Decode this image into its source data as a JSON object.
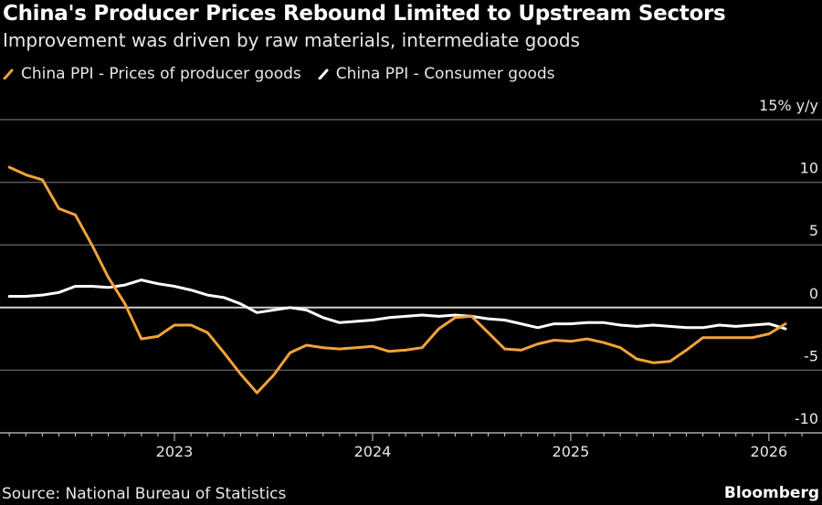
{
  "chart_data": {
    "type": "line",
    "title": "China's Producer Prices Rebound Limited to Upstream Sectors",
    "subtitle": "Improvement was driven by raw materials, intermediate goods",
    "xlabel": "",
    "ylabel": "% y/y",
    "y_unit_label": "15% y/y",
    "ylim": [
      -10,
      15
    ],
    "yticks": [
      15,
      10,
      5,
      0,
      -5,
      -10
    ],
    "ytick_labels": [
      "15% y/y",
      "10",
      "5",
      "0",
      "-5",
      "-10"
    ],
    "xticks": [
      "2023",
      "2024",
      "2025",
      "2026"
    ],
    "x_start": "2022-03",
    "x_end": "2026-02",
    "grid": true,
    "legend_position": "top-left",
    "x": [
      "2022-03",
      "2022-04",
      "2022-05",
      "2022-06",
      "2022-07",
      "2022-08",
      "2022-09",
      "2022-10",
      "2022-11",
      "2022-12",
      "2023-01",
      "2023-02",
      "2023-03",
      "2023-04",
      "2023-05",
      "2023-06",
      "2023-07",
      "2023-08",
      "2023-09",
      "2023-10",
      "2023-11",
      "2023-12",
      "2024-01",
      "2024-02",
      "2024-03",
      "2024-04",
      "2024-05",
      "2024-06",
      "2024-07",
      "2024-08",
      "2024-09",
      "2024-10",
      "2024-11",
      "2024-12",
      "2025-01",
      "2025-02",
      "2025-03",
      "2025-04",
      "2025-05",
      "2025-06",
      "2025-07",
      "2025-08",
      "2025-09",
      "2025-10",
      "2025-11",
      "2025-12",
      "2026-01",
      "2026-02"
    ],
    "series": [
      {
        "name": "China PPI - Prices of producer goods",
        "color": "#f2a33a",
        "values": [
          11.2,
          10.6,
          10.2,
          7.9,
          7.4,
          5.0,
          2.4,
          0.3,
          -2.5,
          -2.3,
          -1.4,
          -1.4,
          -2.0,
          -3.6,
          -5.3,
          -6.8,
          -5.4,
          -3.6,
          -3.0,
          -3.2,
          -3.3,
          -3.2,
          -3.1,
          -3.5,
          -3.4,
          -3.2,
          -1.7,
          -0.8,
          -0.7,
          -2.0,
          -3.3,
          -3.4,
          -2.9,
          -2.6,
          -2.7,
          -2.5,
          -2.8,
          -3.2,
          -4.1,
          -4.4,
          -4.3,
          -3.4,
          -2.4,
          -2.4,
          -2.4,
          -2.4,
          -2.1,
          -1.3
        ]
      },
      {
        "name": "China PPI - Consumer goods",
        "color": "#ffffff",
        "values": [
          0.9,
          0.9,
          1.0,
          1.2,
          1.7,
          1.7,
          1.6,
          1.8,
          2.2,
          1.9,
          1.7,
          1.4,
          1.0,
          0.8,
          0.3,
          -0.4,
          -0.2,
          0.0,
          -0.2,
          -0.8,
          -1.2,
          -1.1,
          -1.0,
          -0.8,
          -0.7,
          -0.6,
          -0.7,
          -0.6,
          -0.7,
          -0.9,
          -1.0,
          -1.3,
          -1.6,
          -1.3,
          -1.3,
          -1.2,
          -1.2,
          -1.4,
          -1.5,
          -1.4,
          -1.5,
          -1.6,
          -1.6,
          -1.4,
          -1.5,
          -1.4,
          -1.3,
          -1.7
        ]
      }
    ]
  },
  "footer": {
    "source": "Source: National Bureau of Statistics",
    "brand": "Bloomberg"
  }
}
